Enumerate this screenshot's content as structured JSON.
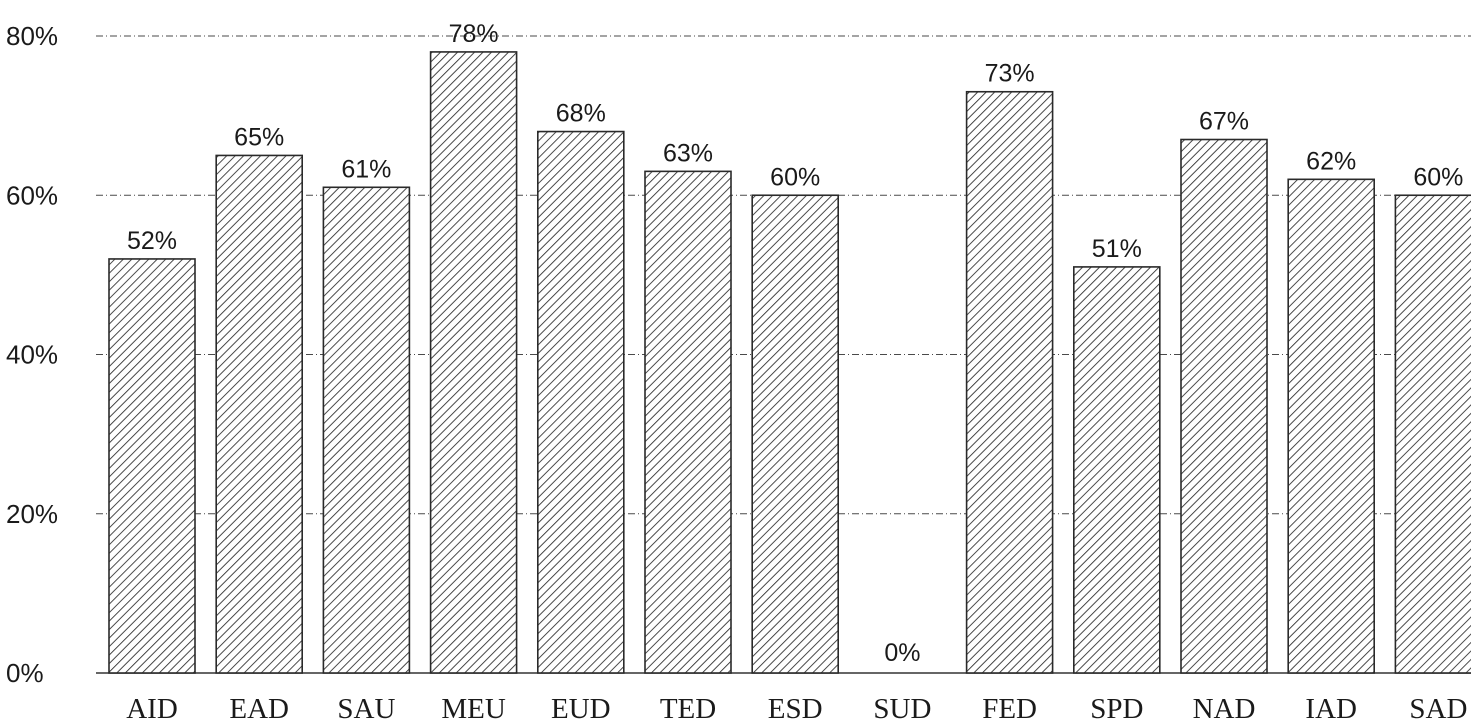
{
  "chart_data": {
    "type": "bar",
    "categories": [
      "AID",
      "EAD",
      "SAU",
      "MEU",
      "EUD",
      "TED",
      "ESD",
      "SUD",
      "FED",
      "SPD",
      "NAD",
      "IAD",
      "SAD"
    ],
    "values": [
      52,
      65,
      61,
      78,
      68,
      63,
      60,
      0,
      73,
      51,
      67,
      62,
      60
    ],
    "data_labels": [
      "52%",
      "65%",
      "61%",
      "78%",
      "68%",
      "63%",
      "60%",
      "0%",
      "73%",
      "51%",
      "67%",
      "62%",
      "60%"
    ],
    "title": "",
    "xlabel": "",
    "ylabel": "",
    "ylim": [
      0,
      80
    ],
    "yticks": [
      0,
      20,
      40,
      60,
      80
    ],
    "ytick_labels": [
      "0%",
      "20%",
      "40%",
      "60%",
      "80%"
    ],
    "grid": true,
    "legend": "none",
    "bar_fill": "diagonal-hatch",
    "colors": {
      "hatch": "#2a2a2a",
      "grid": "#4a4a4a",
      "text": "#1a1a1a"
    }
  }
}
